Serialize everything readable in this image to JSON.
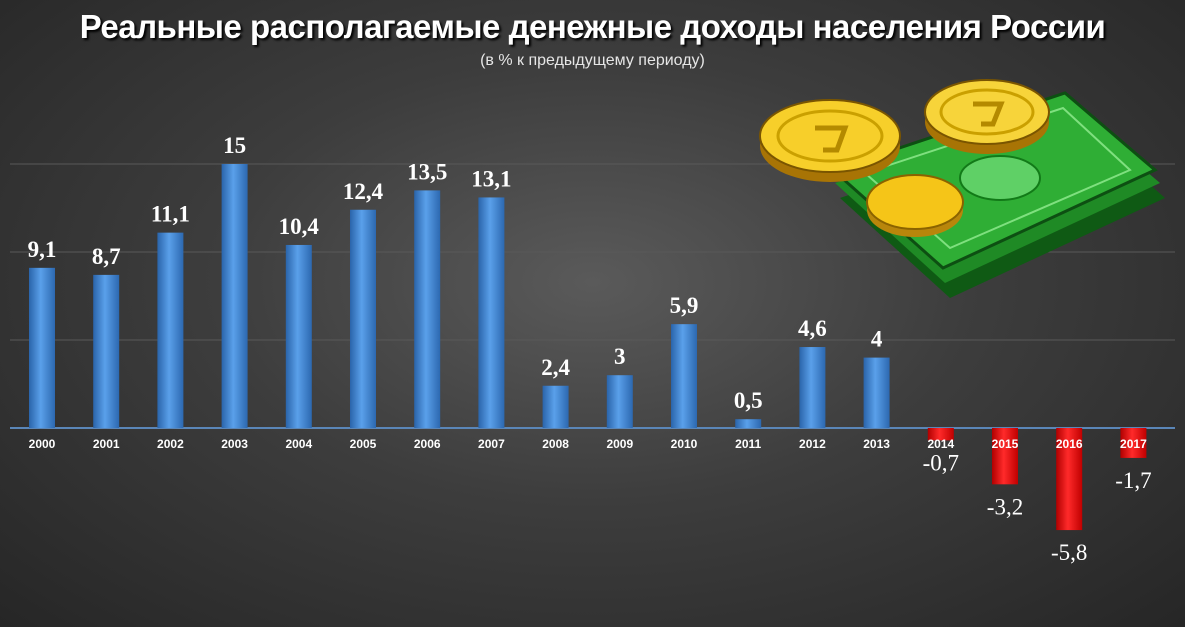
{
  "title": "Реальные располагаемые денежные доходы населения России",
  "subtitle": "(в % к предыдущему периоду)",
  "colors": {
    "positive": "#3f86d4",
    "negative": "#e00000",
    "background": "#3d3d3d"
  },
  "decoration": {
    "icon": "money-coins-banknotes-icon"
  },
  "chart_data": {
    "type": "bar",
    "title": "Реальные располагаемые денежные доходы населения России",
    "subtitle": "(в % к предыдущему периоду)",
    "xlabel": "",
    "ylabel": "",
    "ylim": [
      -7,
      15
    ],
    "grid": true,
    "legend": "none",
    "categories": [
      "2000",
      "2001",
      "2002",
      "2003",
      "2004",
      "2005",
      "2006",
      "2007",
      "2008",
      "2009",
      "2010",
      "2011",
      "2012",
      "2013",
      "2014",
      "2015",
      "2016",
      "2017"
    ],
    "values": [
      9.1,
      8.7,
      11.1,
      15,
      10.4,
      12.4,
      13.5,
      13.1,
      2.4,
      3,
      5.9,
      0.5,
      4.6,
      4,
      -0.7,
      -3.2,
      -5.8,
      -1.7
    ],
    "value_labels": [
      "9,1",
      "8,7",
      "11,1",
      "15",
      "10,4",
      "12,4",
      "13,5",
      "13,1",
      "2,4",
      "3",
      "5,9",
      "0,5",
      "4,6",
      "4",
      "-0,7",
      "-3,2",
      "-5,8",
      "-1,7"
    ]
  }
}
